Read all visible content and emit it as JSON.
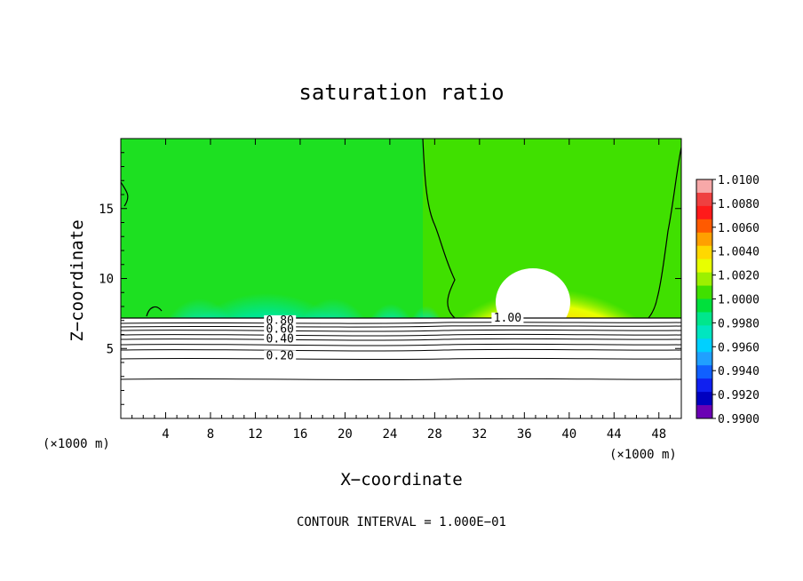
{
  "chart_data": {
    "type": "heatmap",
    "title": "saturation ratio",
    "xlabel": "X−coordinate",
    "ylabel": "Z−coordinate",
    "x_unit_label": "(×1000 m)",
    "x_unit_label_right": "(×1000 m)",
    "footer": "CONTOUR INTERVAL = 1.000E−01",
    "xlim": [
      0,
      50
    ],
    "ylim": [
      0,
      20
    ],
    "x_ticks": [
      4,
      8,
      12,
      16,
      20,
      24,
      28,
      32,
      36,
      40,
      44,
      48
    ],
    "y_ticks": [
      5,
      10,
      15
    ],
    "colorbar": {
      "labels": [
        "1.0100",
        "1.0080",
        "1.0060",
        "1.0040",
        "1.0020",
        "1.0000",
        "0.9980",
        "0.9960",
        "0.9940",
        "0.9920",
        "0.9900"
      ],
      "colors": [
        "#f7a8a8",
        "#ef4040",
        "#ff1a1a",
        "#ff5a00",
        "#ffa000",
        "#ffd800",
        "#e8ff00",
        "#9cf000",
        "#40e000",
        "#00e03c",
        "#00e68c",
        "#00e6c0",
        "#00d0ff",
        "#20a0ff",
        "#1060ff",
        "#1020f0",
        "#0000c0",
        "#6a00b4"
      ]
    },
    "contour_labels": [
      {
        "text": "0.80",
        "x": 14.2,
        "z": 6.8
      },
      {
        "text": "0.60",
        "x": 14.2,
        "z": 6.2
      },
      {
        "text": "0.40",
        "x": 14.2,
        "z": 5.5
      },
      {
        "text": "0.20",
        "x": 14.2,
        "z": 4.3
      },
      {
        "text": "1.00",
        "x": 34.5,
        "z": 7.0
      }
    ],
    "background_level": 1.0,
    "cloud_base_z": 7.3
  }
}
